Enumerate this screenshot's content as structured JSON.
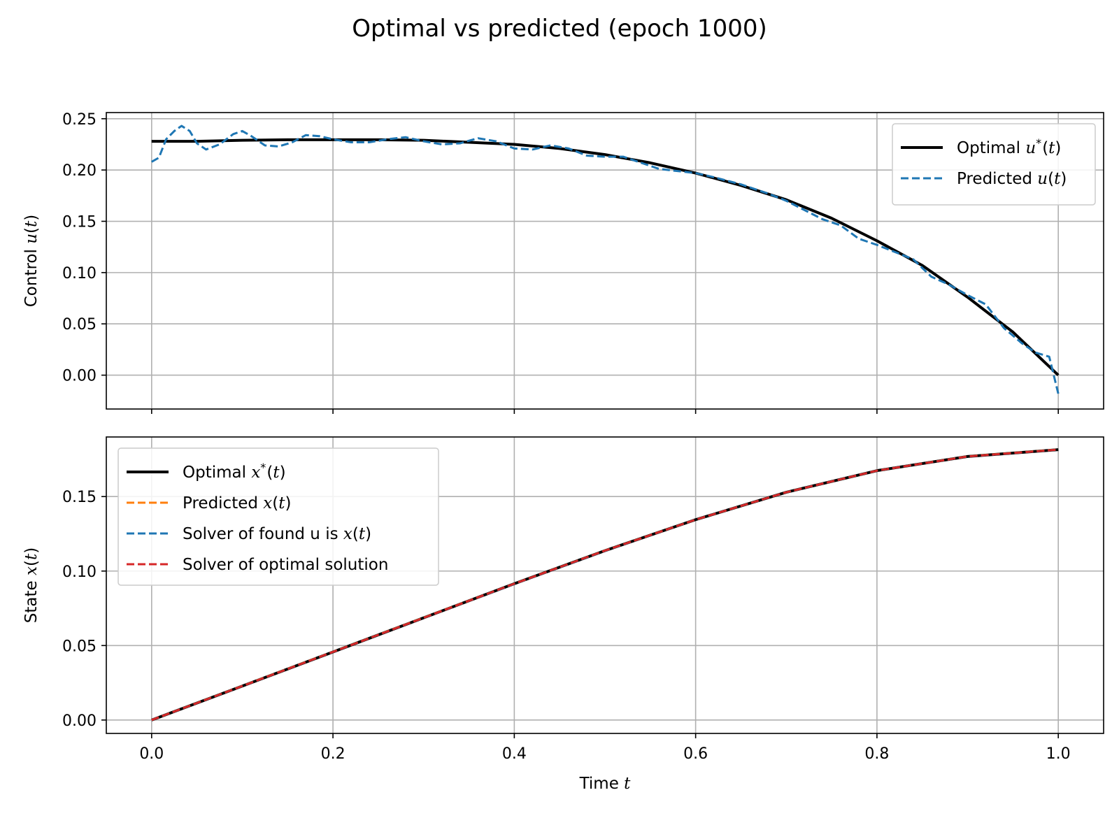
{
  "figure": {
    "title": "Optimal vs predicted (epoch 1000)"
  },
  "colors": {
    "optimal": "#000000",
    "predicted_u": "#1f77b4",
    "predicted_x": "#ff7f0e",
    "solver_found": "#1f77b4",
    "solver_optimal": "#d62728",
    "grid": "#b0b0b0"
  },
  "chart_data": [
    {
      "type": "line",
      "panel": "top",
      "xlabel": "",
      "ylabel": {
        "prefix": "Control ",
        "var": "u",
        "suffix": "(",
        "arg": "t",
        "close": ")"
      },
      "xlim": [
        -0.05,
        1.05
      ],
      "ylim": [
        -0.033,
        0.256
      ],
      "xticks": [
        0.0,
        0.2,
        0.4,
        0.6,
        0.8,
        1.0
      ],
      "xtick_labels_visible": false,
      "yticks": [
        0.0,
        0.05,
        0.1,
        0.15,
        0.2,
        0.25
      ],
      "ytick_labels": [
        "0.00",
        "0.05",
        "0.10",
        "0.15",
        "0.20",
        "0.25"
      ],
      "grid": true,
      "legend_position": "upper-right",
      "series": [
        {
          "name": {
            "prefix": "Optimal ",
            "var": "u",
            "sup": "*",
            "open": "(",
            "arg": "t",
            "close": ")"
          },
          "style": "solid",
          "color_key": "optimal",
          "x": [
            0.0,
            0.05,
            0.1,
            0.15,
            0.2,
            0.25,
            0.3,
            0.35,
            0.4,
            0.45,
            0.5,
            0.55,
            0.6,
            0.65,
            0.7,
            0.75,
            0.8,
            0.85,
            0.9,
            0.95,
            1.0
          ],
          "y": [
            0.228,
            0.228,
            0.229,
            0.2295,
            0.2295,
            0.2295,
            0.229,
            0.227,
            0.225,
            0.221,
            0.215,
            0.207,
            0.197,
            0.185,
            0.171,
            0.153,
            0.131,
            0.107,
            0.076,
            0.042,
            0.0
          ]
        },
        {
          "name": {
            "prefix": "Predicted ",
            "var": "u",
            "sup": "",
            "open": "(",
            "arg": "t",
            "close": ")"
          },
          "style": "dashed",
          "color_key": "predicted_u",
          "x": [
            0.0,
            0.008,
            0.016,
            0.025,
            0.033,
            0.042,
            0.05,
            0.06,
            0.075,
            0.09,
            0.1,
            0.11,
            0.125,
            0.14,
            0.155,
            0.17,
            0.185,
            0.2,
            0.22,
            0.24,
            0.26,
            0.28,
            0.3,
            0.32,
            0.34,
            0.36,
            0.38,
            0.4,
            0.42,
            0.44,
            0.46,
            0.48,
            0.5,
            0.52,
            0.54,
            0.56,
            0.58,
            0.6,
            0.62,
            0.65,
            0.68,
            0.7,
            0.72,
            0.74,
            0.76,
            0.78,
            0.8,
            0.82,
            0.84,
            0.86,
            0.88,
            0.9,
            0.92,
            0.94,
            0.96,
            0.975,
            0.99,
            1.0
          ],
          "y": [
            0.208,
            0.212,
            0.23,
            0.238,
            0.243,
            0.238,
            0.226,
            0.22,
            0.225,
            0.235,
            0.238,
            0.233,
            0.224,
            0.223,
            0.227,
            0.234,
            0.233,
            0.23,
            0.227,
            0.227,
            0.23,
            0.232,
            0.228,
            0.225,
            0.226,
            0.231,
            0.228,
            0.221,
            0.22,
            0.224,
            0.221,
            0.214,
            0.213,
            0.213,
            0.207,
            0.201,
            0.199,
            0.197,
            0.193,
            0.186,
            0.177,
            0.17,
            0.161,
            0.152,
            0.146,
            0.133,
            0.127,
            0.12,
            0.113,
            0.096,
            0.088,
            0.078,
            0.069,
            0.046,
            0.031,
            0.022,
            0.018,
            -0.018
          ]
        }
      ]
    },
    {
      "type": "line",
      "panel": "bottom",
      "xlabel": {
        "prefix": "Time ",
        "var": "t"
      },
      "ylabel": {
        "prefix": "State ",
        "var": "x",
        "suffix": "(",
        "arg": "t",
        "close": ")"
      },
      "xlim": [
        -0.05,
        1.05
      ],
      "ylim": [
        -0.009,
        0.19
      ],
      "xticks": [
        0.0,
        0.2,
        0.4,
        0.6,
        0.8,
        1.0
      ],
      "xtick_labels": [
        "0.0",
        "0.2",
        "0.4",
        "0.6",
        "0.8",
        "1.0"
      ],
      "yticks": [
        0.0,
        0.05,
        0.1,
        0.15
      ],
      "ytick_labels": [
        "0.00",
        "0.05",
        "0.10",
        "0.15"
      ],
      "grid": true,
      "legend_position": "upper-left",
      "series": [
        {
          "name": {
            "prefix": "Optimal ",
            "var": "x",
            "sup": "*",
            "open": "(",
            "arg": "t",
            "close": ")"
          },
          "style": "solid",
          "color_key": "optimal",
          "x": [
            0.0,
            0.1,
            0.2,
            0.3,
            0.4,
            0.5,
            0.6,
            0.7,
            0.8,
            0.9,
            1.0
          ],
          "y": [
            0.0,
            0.0228,
            0.0457,
            0.0686,
            0.0915,
            0.1137,
            0.1345,
            0.1529,
            0.1674,
            0.1769,
            0.1815
          ]
        },
        {
          "name": {
            "prefix": "Predicted ",
            "var": "x",
            "sup": "",
            "open": "(",
            "arg": "t",
            "close": ")"
          },
          "style": "dashed",
          "color_key": "predicted_x",
          "x": [
            0.0,
            0.1,
            0.2,
            0.3,
            0.4,
            0.5,
            0.6,
            0.7,
            0.8,
            0.9,
            1.0
          ],
          "y": [
            0.0,
            0.0229,
            0.0458,
            0.0687,
            0.0915,
            0.1137,
            0.1345,
            0.1529,
            0.1674,
            0.177,
            0.1816
          ]
        },
        {
          "name": {
            "prefix": "Solver of found u is ",
            "var": "x",
            "sup": "",
            "open": "(",
            "arg": "t",
            "close": ")"
          },
          "style": "dashed",
          "color_key": "solver_found",
          "x": [
            0.0,
            0.1,
            0.2,
            0.3,
            0.4,
            0.5,
            0.6,
            0.7,
            0.8,
            0.9,
            1.0
          ],
          "y": [
            0.0,
            0.0228,
            0.0457,
            0.0686,
            0.0914,
            0.1136,
            0.1345,
            0.1529,
            0.1674,
            0.1769,
            0.1815
          ]
        },
        {
          "name": {
            "prefix": "Solver of optimal solution",
            "var": "",
            "sup": "",
            "open": "",
            "arg": "",
            "close": ""
          },
          "style": "dashed",
          "color_key": "solver_optimal",
          "x": [
            0.0,
            0.1,
            0.2,
            0.3,
            0.4,
            0.5,
            0.6,
            0.7,
            0.8,
            0.9,
            1.0
          ],
          "y": [
            0.0,
            0.0228,
            0.0457,
            0.0686,
            0.0915,
            0.1137,
            0.1345,
            0.1529,
            0.1674,
            0.1769,
            0.1815
          ]
        }
      ]
    }
  ]
}
